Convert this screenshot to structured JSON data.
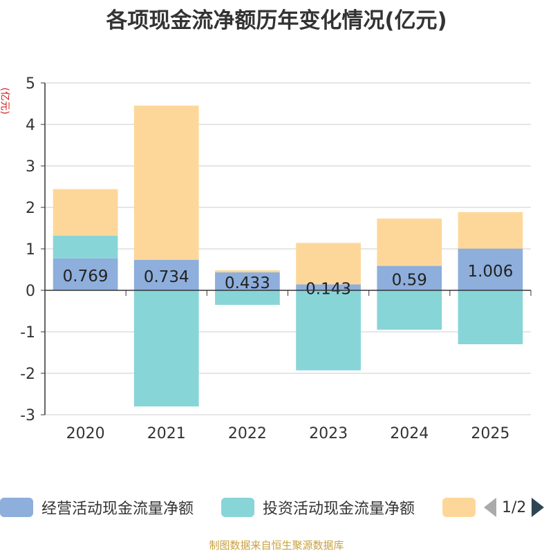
{
  "chart_data": {
    "type": "bar",
    "stacked": true,
    "title": "各项现金流净额历年变化情况(亿元)",
    "ylabel": "(亿元)",
    "xlabel": "",
    "ylim": [
      -3,
      5
    ],
    "yticks": [
      5,
      4,
      3,
      2,
      1,
      0,
      -1,
      -2,
      -3
    ],
    "grid": true,
    "categories": [
      "2020",
      "2021",
      "2022",
      "2023",
      "2024",
      "2025"
    ],
    "series": [
      {
        "name": "经营活动现金流量净额",
        "color": "#8eaedb",
        "values": [
          0.769,
          0.734,
          0.433,
          0.143,
          0.59,
          1.006
        ],
        "labels": [
          "0.769",
          "0.734",
          "0.433",
          "0.143",
          "0.59",
          "1.006"
        ]
      },
      {
        "name": "投资活动现金流量净额",
        "color": "#88d5d8",
        "values": [
          0.55,
          -2.8,
          -0.35,
          -1.93,
          -0.95,
          -1.3
        ]
      },
      {
        "name": "",
        "color": "#fdd79a",
        "values": [
          1.12,
          3.72,
          0.05,
          1.0,
          1.14,
          0.88
        ]
      }
    ],
    "legend_position": "bottom"
  },
  "legend": {
    "page_label": "1/2",
    "items": [
      {
        "label": "经营活动现金流量净额",
        "color": "#8eaedb"
      },
      {
        "label": "投资活动现金流量净额",
        "color": "#88d5d8"
      },
      {
        "label": "",
        "color": "#fdd79a"
      }
    ]
  },
  "source": "制图数据来自恒生聚源数据库"
}
